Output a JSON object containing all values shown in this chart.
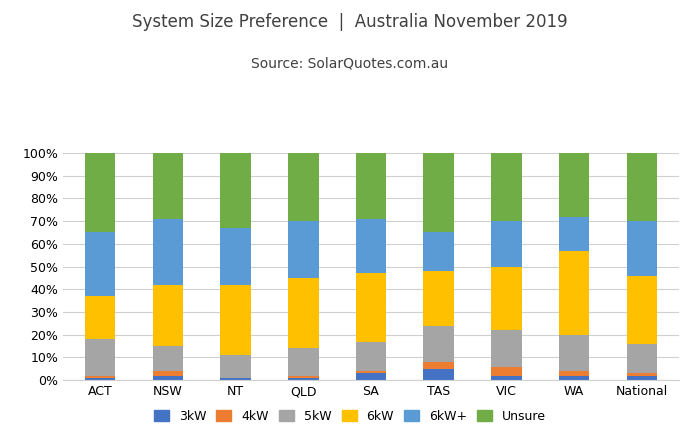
{
  "categories": [
    "ACT",
    "NSW",
    "NT",
    "QLD",
    "SA",
    "TAS",
    "VIC",
    "WA",
    "National"
  ],
  "series": {
    "3kW": [
      1,
      2,
      1,
      1,
      3,
      5,
      2,
      2,
      2
    ],
    "4kW": [
      1,
      2,
      0,
      1,
      1,
      3,
      4,
      2,
      1
    ],
    "5kW": [
      16,
      11,
      10,
      12,
      13,
      16,
      16,
      16,
      13
    ],
    "6kW": [
      19,
      27,
      31,
      31,
      30,
      24,
      28,
      37,
      30
    ],
    "6kW+": [
      28,
      29,
      25,
      25,
      24,
      17,
      20,
      15,
      24
    ],
    "Unsure": [
      35,
      29,
      33,
      30,
      29,
      35,
      30,
      28,
      30
    ]
  },
  "colors": {
    "3kW": "#4472C4",
    "4kW": "#ED7D31",
    "5kW": "#A5A5A5",
    "6kW": "#FFC000",
    "6kW+": "#5B9BD5",
    "Unsure": "#70AD47"
  },
  "title_line1": "System Size Preference  |  Australia November 2019",
  "title_line2": "Source: SolarQuotes.com.au",
  "ylim": [
    0,
    100
  ],
  "ytick_labels": [
    "0%",
    "10%",
    "20%",
    "30%",
    "40%",
    "50%",
    "60%",
    "70%",
    "80%",
    "90%",
    "100%"
  ],
  "ytick_values": [
    0,
    10,
    20,
    30,
    40,
    50,
    60,
    70,
    80,
    90,
    100
  ],
  "background_color": "#FFFFFF",
  "grid_color": "#D0D0D0",
  "title_fontsize": 12,
  "subtitle_fontsize": 10,
  "bar_width": 0.45,
  "tick_fontsize": 9,
  "legend_fontsize": 9
}
